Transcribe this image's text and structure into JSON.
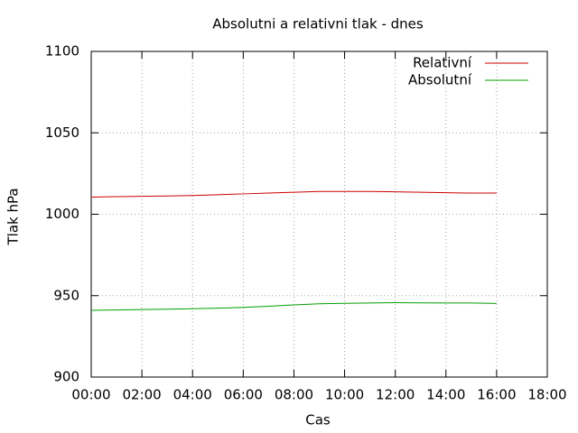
{
  "chart_data": {
    "type": "line",
    "title": "Absolutni a relativni tlak - dnes",
    "x_label": "Cas",
    "y_label": "Tlak hPa",
    "x": [
      0,
      1,
      2,
      3,
      4,
      5,
      6,
      7,
      8,
      9,
      10,
      11,
      12,
      13,
      14,
      15,
      16
    ],
    "series": [
      {
        "name": "Relativní",
        "color": "#cc0000",
        "values": [
          1010.5,
          1010.8,
          1011,
          1011.2,
          1011.5,
          1012,
          1012.5,
          1013,
          1013.5,
          1014,
          1014,
          1014,
          1013.8,
          1013.5,
          1013.2,
          1013,
          1013
        ]
      },
      {
        "name": "Absolutní",
        "color": "#00a000",
        "values": [
          941,
          941.2,
          941.5,
          941.7,
          942,
          942.3,
          942.8,
          943.5,
          944.3,
          945,
          945.3,
          945.5,
          945.7,
          945.6,
          945.5,
          945.5,
          945.2
        ]
      }
    ],
    "xlim": [
      0,
      18
    ],
    "xticks": [
      {
        "value": 0,
        "label": "00:00"
      },
      {
        "value": 2,
        "label": "02:00"
      },
      {
        "value": 4,
        "label": "04:00"
      },
      {
        "value": 6,
        "label": "06:00"
      },
      {
        "value": 8,
        "label": "08:00"
      },
      {
        "value": 10,
        "label": "10:00"
      },
      {
        "value": 12,
        "label": "12:00"
      },
      {
        "value": 14,
        "label": "14:00"
      },
      {
        "value": 16,
        "label": "16:00"
      },
      {
        "value": 18,
        "label": "18:00"
      }
    ],
    "ylim": [
      900,
      1100
    ],
    "yticks": [
      900,
      950,
      1000,
      1050,
      1100
    ],
    "grid": true,
    "legend": "top-right"
  }
}
